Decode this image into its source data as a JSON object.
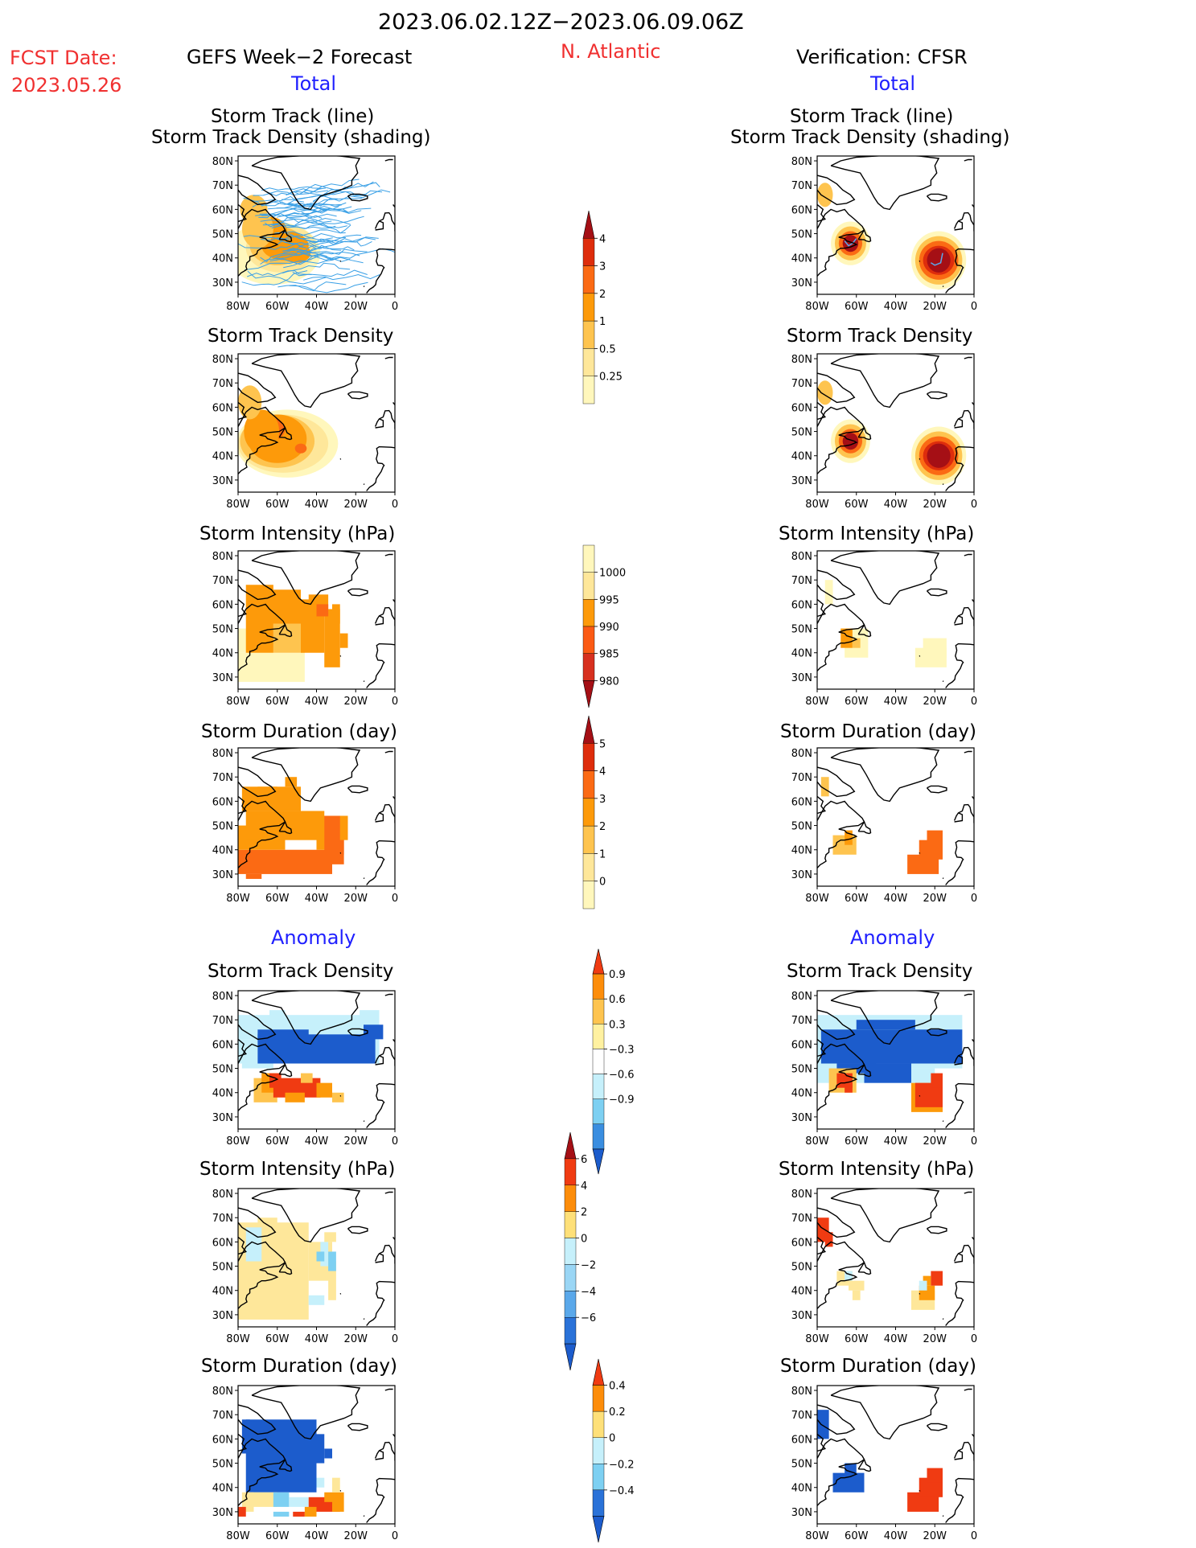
{
  "header": {
    "date_range": "2023.06.02.12Z−2023.06.09.06Z",
    "region": "N. Atlantic",
    "fcst_label": "FCST Date:",
    "fcst_date": "2023.05.26",
    "left_model": "GEFS Week−2 Forecast",
    "right_model": "Verification: CFSR",
    "total_label": "Total",
    "anomaly_label": "Anomaly"
  },
  "panel_titles": {
    "track_line": "Storm Track (line)",
    "track_shading": "Storm Track Density (shading)",
    "density": "Storm Track Density",
    "intensity": "Storm Intensity (hPa)",
    "duration": "Storm Duration (day)"
  },
  "axis_ticks": {
    "lat": [
      "80N",
      "70N",
      "60N",
      "50N",
      "40N",
      "30N"
    ],
    "lon": [
      "80W",
      "60W",
      "40W",
      "20W",
      "0"
    ]
  },
  "colorbars": [
    {
      "name": "track-density",
      "labels": [
        "4",
        "3",
        "2",
        "1",
        "0.5",
        "0.25"
      ],
      "colors": [
        "#a50f15",
        "#de2d0c",
        "#fb6a14",
        "#fd9a0a",
        "#fec44f",
        "#fee79a",
        "#fff7bc"
      ]
    },
    {
      "name": "intensity",
      "labels": [
        "1000",
        "995",
        "990",
        "985",
        "980"
      ],
      "colors": [
        "#fff7bc",
        "#fee79a",
        "#fd9a0a",
        "#fb5a14",
        "#d7301f",
        "#a50f15"
      ]
    },
    {
      "name": "duration",
      "labels": [
        "5",
        "4",
        "3",
        "2",
        "1",
        "0"
      ],
      "colors": [
        "#a50f15",
        "#de2d0c",
        "#fb6a14",
        "#fd9a0a",
        "#fec44f",
        "#fee79a",
        "#fff7bc"
      ]
    },
    {
      "name": "density-anomaly",
      "labels": [
        "0.9",
        "0.6",
        "0.3",
        "−0.3",
        "−0.6",
        "−0.9"
      ],
      "colors": [
        "#f03b12",
        "#fd8d0a",
        "#fec44f",
        "#fff1a0",
        "#ffffff",
        "#c6f0fb",
        "#7dd0f2",
        "#3a8ee0",
        "#1c5ccc"
      ]
    },
    {
      "name": "intensity-anomaly",
      "labels": [
        "6",
        "4",
        "2",
        "0",
        "−2",
        "−4",
        "−6"
      ],
      "colors": [
        "#a50f15",
        "#f03b12",
        "#fd8d0a",
        "#fee079",
        "#c6f0fb",
        "#9ad6f5",
        "#5aa8ea",
        "#2a72d8",
        "#1c5ccc"
      ]
    },
    {
      "name": "duration-anomaly",
      "labels": [
        "0.4",
        "0.2",
        "0",
        "−0.2",
        "−0.4"
      ],
      "colors": [
        "#f03b12",
        "#fd8d0a",
        "#fee079",
        "#c6f0fb",
        "#7dd0f2",
        "#2a72d8",
        "#1c5ccc"
      ]
    }
  ],
  "chart_data": [
    {
      "type": "heatmap",
      "name": "gefs-total-track",
      "title": "Storm Track (line)",
      "subtitle": "Storm Track Density (shading)",
      "x_ticks": [
        "80W",
        "60W",
        "40W",
        "20W",
        "0"
      ],
      "y_ticks": [
        "80N",
        "70N",
        "60N",
        "50N",
        "40N",
        "30N"
      ],
      "field": "gefs-track",
      "tracks": "gefs"
    },
    {
      "type": "heatmap",
      "name": "cfsr-total-track",
      "title": "Storm Track (line)",
      "subtitle": "Storm Track Density (shading)",
      "x_ticks": [
        "80W",
        "60W",
        "40W",
        "20W",
        "0"
      ],
      "y_ticks": [
        "80N",
        "70N",
        "60N",
        "50N",
        "40N",
        "30N"
      ],
      "field": "cfsr-track",
      "tracks": "cfsr"
    },
    {
      "type": "heatmap",
      "name": "gefs-total-density",
      "title": "Storm Track Density",
      "x_ticks": [
        "80W",
        "60W",
        "40W",
        "20W",
        "0"
      ],
      "y_ticks": [
        "80N",
        "70N",
        "60N",
        "50N",
        "40N",
        "30N"
      ],
      "field": "gefs-density"
    },
    {
      "type": "heatmap",
      "name": "cfsr-total-density",
      "title": "Storm Track Density",
      "x_ticks": [
        "80W",
        "60W",
        "40W",
        "20W",
        "0"
      ],
      "y_ticks": [
        "80N",
        "70N",
        "60N",
        "50N",
        "40N",
        "30N"
      ],
      "field": "cfsr-density"
    },
    {
      "type": "heatmap",
      "name": "gefs-total-intensity",
      "title": "Storm Intensity (hPa)",
      "x_ticks": [
        "80W",
        "60W",
        "40W",
        "20W",
        "0"
      ],
      "y_ticks": [
        "80N",
        "70N",
        "60N",
        "50N",
        "40N",
        "30N"
      ],
      "field": "gefs-intensity"
    },
    {
      "type": "heatmap",
      "name": "cfsr-total-intensity",
      "title": "Storm Intensity (hPa)",
      "x_ticks": [
        "80W",
        "60W",
        "40W",
        "20W",
        "0"
      ],
      "y_ticks": [
        "80N",
        "70N",
        "60N",
        "50N",
        "40N",
        "30N"
      ],
      "field": "cfsr-intensity"
    },
    {
      "type": "heatmap",
      "name": "gefs-total-duration",
      "title": "Storm Duration (day)",
      "x_ticks": [
        "80W",
        "60W",
        "40W",
        "20W",
        "0"
      ],
      "y_ticks": [
        "80N",
        "70N",
        "60N",
        "50N",
        "40N",
        "30N"
      ],
      "field": "gefs-duration"
    },
    {
      "type": "heatmap",
      "name": "cfsr-total-duration",
      "title": "Storm Duration (day)",
      "x_ticks": [
        "80W",
        "60W",
        "40W",
        "20W",
        "0"
      ],
      "y_ticks": [
        "80N",
        "70N",
        "60N",
        "50N",
        "40N",
        "30N"
      ],
      "field": "cfsr-duration"
    },
    {
      "type": "heatmap",
      "name": "gefs-anom-density",
      "title": "Storm Track Density",
      "x_ticks": [
        "80W",
        "60W",
        "40W",
        "20W",
        "0"
      ],
      "y_ticks": [
        "80N",
        "70N",
        "60N",
        "50N",
        "40N",
        "30N"
      ],
      "field": "gefs-anom-density"
    },
    {
      "type": "heatmap",
      "name": "cfsr-anom-density",
      "title": "Storm Track Density",
      "x_ticks": [
        "80W",
        "60W",
        "40W",
        "20W",
        "0"
      ],
      "y_ticks": [
        "80N",
        "70N",
        "60N",
        "50N",
        "40N",
        "30N"
      ],
      "field": "cfsr-anom-density"
    },
    {
      "type": "heatmap",
      "name": "gefs-anom-intensity",
      "title": "Storm Intensity (hPa)",
      "x_ticks": [
        "80W",
        "60W",
        "40W",
        "20W",
        "0"
      ],
      "y_ticks": [
        "80N",
        "70N",
        "60N",
        "50N",
        "40N",
        "30N"
      ],
      "field": "gefs-anom-intensity"
    },
    {
      "type": "heatmap",
      "name": "cfsr-anom-intensity",
      "title": "Storm Intensity (hPa)",
      "x_ticks": [
        "80W",
        "60W",
        "40W",
        "20W",
        "0"
      ],
      "y_ticks": [
        "80N",
        "70N",
        "60N",
        "50N",
        "40N",
        "30N"
      ],
      "field": "cfsr-anom-intensity"
    },
    {
      "type": "heatmap",
      "name": "gefs-anom-duration",
      "title": "Storm Duration (day)",
      "x_ticks": [
        "80W",
        "60W",
        "40W",
        "20W",
        "0"
      ],
      "y_ticks": [
        "80N",
        "70N",
        "60N",
        "50N",
        "40N",
        "30N"
      ],
      "field": "gefs-anom-duration"
    },
    {
      "type": "heatmap",
      "name": "cfsr-anom-duration",
      "title": "Storm Duration (day)",
      "x_ticks": [
        "80W",
        "60W",
        "40W",
        "20W",
        "0"
      ],
      "y_ticks": [
        "80N",
        "70N",
        "60N",
        "50N",
        "40N",
        "30N"
      ],
      "field": "cfsr-anom-duration"
    }
  ]
}
